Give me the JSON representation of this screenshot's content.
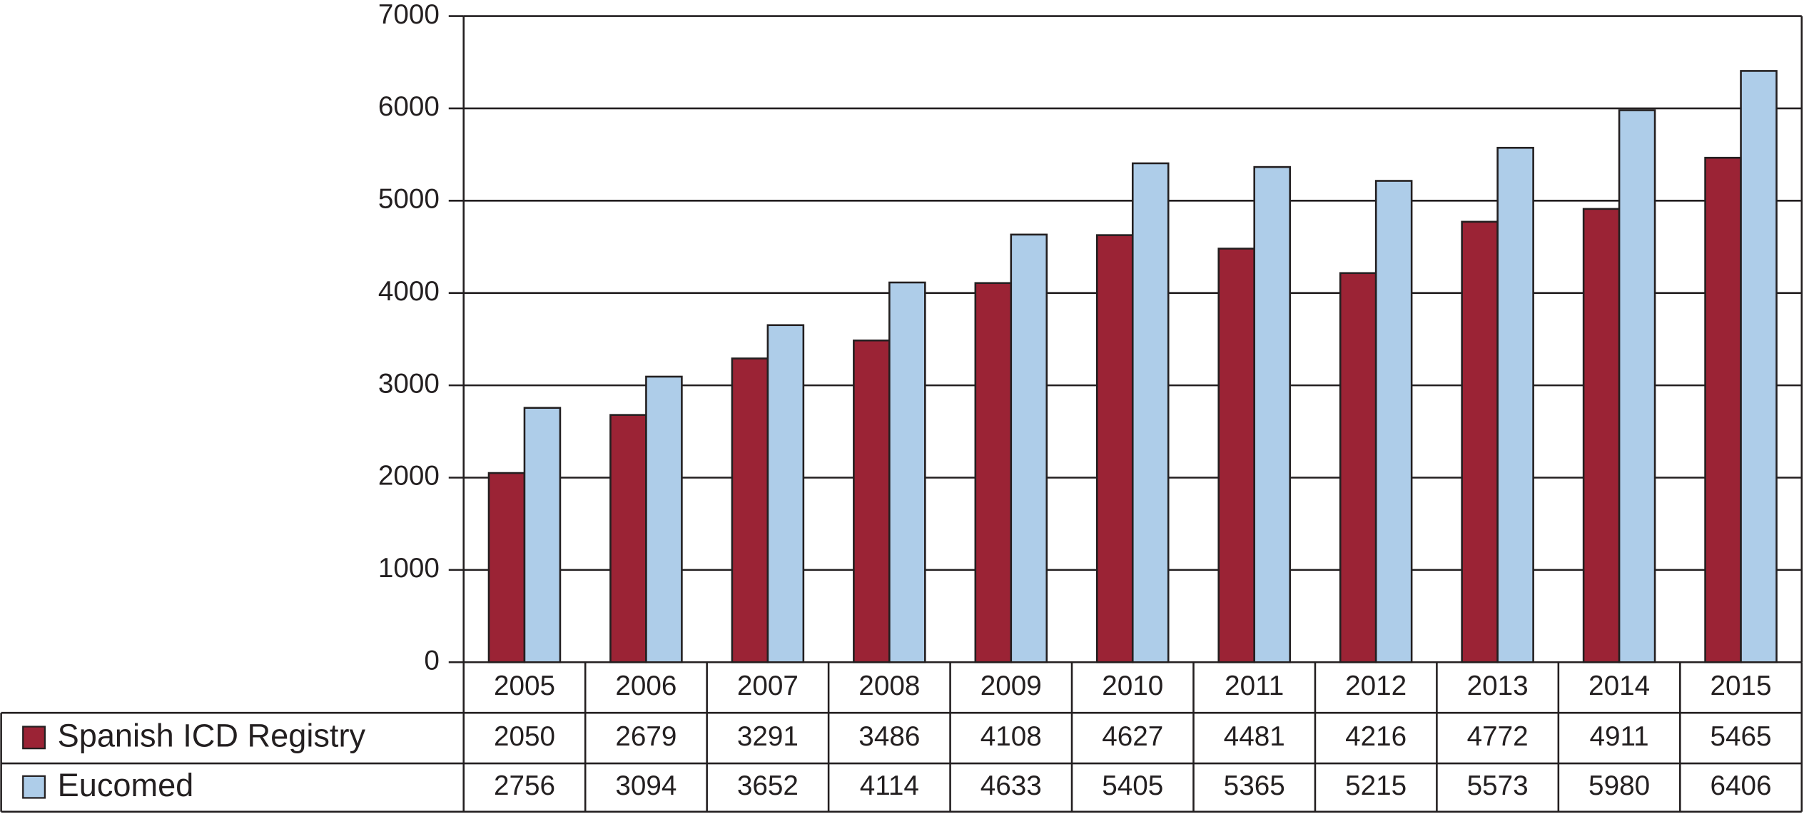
{
  "chart_data": {
    "type": "bar",
    "categories": [
      "2005",
      "2006",
      "2007",
      "2008",
      "2009",
      "2010",
      "2011",
      "2012",
      "2013",
      "2014",
      "2015"
    ],
    "series": [
      {
        "name": "Spanish ICD Registry",
        "color": "#9b2335",
        "values": [
          2050,
          2679,
          3291,
          3486,
          4108,
          4627,
          4481,
          4216,
          4772,
          4911,
          5465
        ]
      },
      {
        "name": "Eucomed",
        "color": "#aecde9",
        "values": [
          2756,
          3094,
          3652,
          4114,
          4633,
          5405,
          5365,
          5215,
          5573,
          5980,
          6406
        ]
      }
    ],
    "ylim": [
      0,
      7000
    ],
    "yticks": [
      0,
      1000,
      2000,
      3000,
      4000,
      5000,
      6000,
      7000
    ],
    "grid": true
  }
}
